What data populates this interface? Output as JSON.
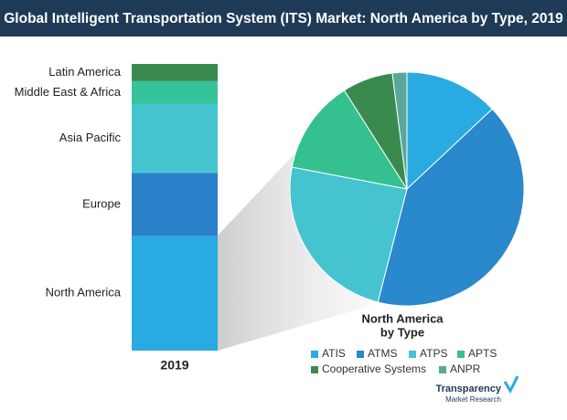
{
  "chart_data": [
    {
      "type": "bar",
      "title": "Global Intelligent Transportation System (ITS) Market: North America by Type, 2019",
      "stacked": true,
      "categories": [
        "2019"
      ],
      "series": [
        {
          "name": "North America",
          "color": "#29abe2",
          "values": [
            40
          ]
        },
        {
          "name": "Europe",
          "color": "#2a80c8",
          "values": [
            22
          ]
        },
        {
          "name": "Asia Pacific",
          "color": "#45c4d0",
          "values": [
            24
          ]
        },
        {
          "name": "Middle East & Africa",
          "color": "#35c49a",
          "values": [
            8
          ]
        },
        {
          "name": "Latin America",
          "color": "#3a8a50",
          "values": [
            6
          ]
        }
      ]
    },
    {
      "type": "pie",
      "title": [
        "North America",
        "by Type"
      ],
      "categories": [
        "ATIS",
        "ATMS",
        "ATPS",
        "APTS",
        "Cooperative Systems",
        "ANPR"
      ],
      "values": [
        13,
        41,
        24,
        13,
        7,
        2
      ],
      "colors": [
        "#29abe2",
        "#2a88cc",
        "#45c4d0",
        "#35c08f",
        "#3a8a50",
        "#5aa89a"
      ]
    }
  ],
  "logo": {
    "brand": "Transparency",
    "sub": "Market Research"
  }
}
